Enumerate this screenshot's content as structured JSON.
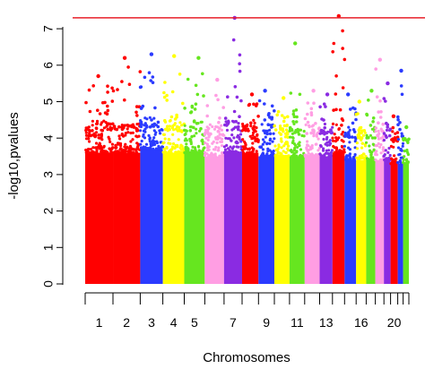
{
  "chart_data": {
    "type": "scatter",
    "subtype": "manhattan",
    "xlabel": "Chromosomes",
    "ylabel": "-log10,pvalues",
    "ylim": [
      0,
      7.5
    ],
    "y_ticks": [
      "0",
      "1",
      "2",
      "3",
      "4",
      "5",
      "6",
      "7"
    ],
    "significance_line": {
      "y": 7.3,
      "color": "#e8202a"
    },
    "chromosome_labels_shown": [
      "1",
      "2",
      "3",
      "4",
      "5",
      "7",
      "9",
      "11",
      "13",
      "16",
      "20"
    ],
    "chromosomes": [
      {
        "chr": "1",
        "color": "#ff0000",
        "max_log10p": 5.7,
        "dense_top": 3.6
      },
      {
        "chr": "2",
        "color": "#ff0000",
        "max_log10p": 6.2,
        "dense_top": 3.6
      },
      {
        "chr": "3",
        "color": "#2b3bff",
        "max_log10p": 6.3,
        "dense_top": 3.7
      },
      {
        "chr": "4",
        "color": "#ffff00",
        "max_log10p": 6.25,
        "dense_top": 3.6
      },
      {
        "chr": "5",
        "color": "#66e61f",
        "max_log10p": 6.2,
        "dense_top": 3.6
      },
      {
        "chr": "6",
        "color": "#ff9ee3",
        "max_log10p": 5.6,
        "dense_top": 3.5
      },
      {
        "chr": "7",
        "color": "#8a2be2",
        "max_log10p": 7.3,
        "dense_top": 3.6
      },
      {
        "chr": "8",
        "color": "#ff0000",
        "max_log10p": 5.2,
        "dense_top": 3.6
      },
      {
        "chr": "9",
        "color": "#2b3bff",
        "max_log10p": 5.3,
        "dense_top": 3.5
      },
      {
        "chr": "10",
        "color": "#ffff00",
        "max_log10p": 5.1,
        "dense_top": 3.5
      },
      {
        "chr": "11",
        "color": "#66e61f",
        "max_log10p": 6.6,
        "dense_top": 3.5
      },
      {
        "chr": "12",
        "color": "#ff9ee3",
        "max_log10p": 5.3,
        "dense_top": 3.5
      },
      {
        "chr": "13",
        "color": "#8a2be2",
        "max_log10p": 5.2,
        "dense_top": 3.5
      },
      {
        "chr": "14",
        "color": "#ff0000",
        "max_log10p": 7.35,
        "dense_top": 3.6
      },
      {
        "chr": "15",
        "color": "#2b3bff",
        "max_log10p": 5.2,
        "dense_top": 3.4
      },
      {
        "chr": "16",
        "color": "#ffff00",
        "max_log10p": 5.0,
        "dense_top": 3.4
      },
      {
        "chr": "17",
        "color": "#66e61f",
        "max_log10p": 5.3,
        "dense_top": 3.4
      },
      {
        "chr": "18",
        "color": "#ff9ee3",
        "max_log10p": 6.15,
        "dense_top": 3.4
      },
      {
        "chr": "19",
        "color": "#8a2be2",
        "max_log10p": 5.5,
        "dense_top": 3.4
      },
      {
        "chr": "20",
        "color": "#ff0000",
        "max_log10p": 4.6,
        "dense_top": 3.3
      },
      {
        "chr": "21",
        "color": "#2b3bff",
        "max_log10p": 5.85,
        "dense_top": 3.3
      },
      {
        "chr": "22",
        "color": "#66e61f",
        "max_log10p": 4.3,
        "dense_top": 3.3
      }
    ]
  }
}
